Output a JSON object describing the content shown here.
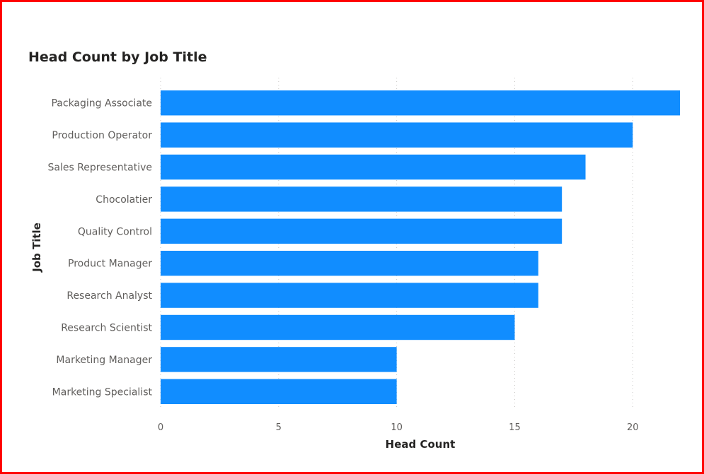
{
  "chart_data": {
    "type": "bar",
    "orientation": "horizontal",
    "title": "Head Count by Job Title",
    "xlabel": "Head Count",
    "ylabel": "Job Title",
    "categories": [
      "Packaging Associate",
      "Production Operator",
      "Sales Representative",
      "Chocolatier",
      "Quality Control",
      "Product Manager",
      "Research Analyst",
      "Research Scientist",
      "Marketing Manager",
      "Marketing Specialist"
    ],
    "values": [
      22,
      20,
      18,
      17,
      17,
      16,
      16,
      15,
      10,
      10
    ],
    "xlim": [
      0,
      22
    ],
    "xticks": [
      "0",
      "5",
      "10",
      "15",
      "20"
    ],
    "grid": true,
    "bar_color": "#118dff",
    "border_color": "#ff0000"
  }
}
